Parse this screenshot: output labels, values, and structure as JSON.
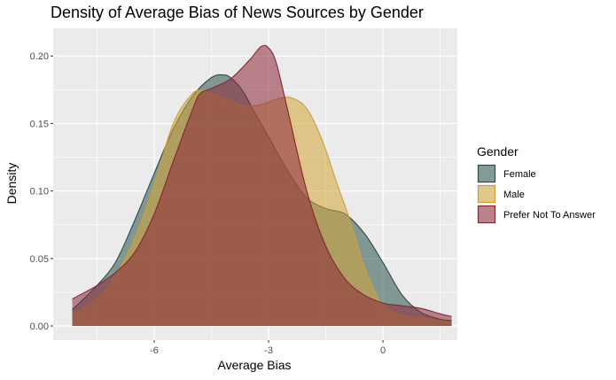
{
  "chart_data": {
    "type": "area",
    "title": "Density of Average Bias of News Sources by Gender",
    "xlabel": "Average Bias",
    "ylabel": "Density",
    "xlim": [
      -8.65,
      1.95
    ],
    "ylim": [
      -0.0105,
      0.2205
    ],
    "x_ticks": [
      -6,
      -3,
      0
    ],
    "x_tick_labels": [
      "-6",
      "-3",
      "0"
    ],
    "y_ticks": [
      0,
      0.05,
      0.1,
      0.15,
      0.2
    ],
    "y_tick_labels": [
      "0.00",
      "0.05",
      "0.10",
      "0.15",
      "0.20"
    ],
    "grid": true,
    "legend_title": "Gender",
    "legend_position": "right",
    "series": [
      {
        "name": "Female",
        "fill": "#28524d",
        "stroke": "#2e4a48",
        "x": [
          -8.15,
          -7.5,
          -7.0,
          -6.5,
          -6.0,
          -5.5,
          -5.0,
          -4.5,
          -4.2,
          -4.0,
          -3.7,
          -3.4,
          -3.0,
          -2.5,
          -2.0,
          -1.5,
          -1.0,
          -0.5,
          0.0,
          0.5,
          1.0,
          1.5,
          1.8
        ],
        "values": [
          0.012,
          0.03,
          0.048,
          0.079,
          0.113,
          0.146,
          0.17,
          0.184,
          0.186,
          0.184,
          0.175,
          0.16,
          0.14,
          0.115,
          0.095,
          0.087,
          0.083,
          0.069,
          0.047,
          0.023,
          0.01,
          0.005,
          0.004
        ]
      },
      {
        "name": "Male",
        "fill": "#d4a435",
        "stroke": "#c9a035",
        "x": [
          -8.15,
          -7.5,
          -7.0,
          -6.5,
          -6.0,
          -5.5,
          -5.0,
          -4.7,
          -4.3,
          -4.0,
          -3.6,
          -3.2,
          -2.8,
          -2.4,
          -2.0,
          -1.6,
          -1.2,
          -0.8,
          -0.5,
          -0.2,
          0.0,
          0.5,
          1.0,
          1.5,
          1.8
        ],
        "values": [
          0.008,
          0.02,
          0.038,
          0.066,
          0.105,
          0.15,
          0.172,
          0.174,
          0.17,
          0.167,
          0.163,
          0.164,
          0.168,
          0.169,
          0.161,
          0.138,
          0.105,
          0.073,
          0.045,
          0.025,
          0.016,
          0.008,
          0.006,
          0.004,
          0.003
        ]
      },
      {
        "name": "Prefer Not To Answer",
        "fill": "#8c2838",
        "stroke": "#8b2332",
        "x": [
          -8.15,
          -7.5,
          -7.0,
          -6.5,
          -6.0,
          -5.5,
          -5.0,
          -4.8,
          -4.5,
          -4.0,
          -3.5,
          -3.2,
          -3.0,
          -2.8,
          -2.5,
          -2.0,
          -1.5,
          -1.0,
          -0.5,
          0.0,
          0.5,
          1.0,
          1.5,
          1.8
        ],
        "values": [
          0.02,
          0.03,
          0.04,
          0.055,
          0.083,
          0.122,
          0.16,
          0.172,
          0.176,
          0.183,
          0.197,
          0.207,
          0.206,
          0.195,
          0.16,
          0.1,
          0.059,
          0.035,
          0.023,
          0.017,
          0.015,
          0.013,
          0.009,
          0.007
        ]
      }
    ]
  }
}
